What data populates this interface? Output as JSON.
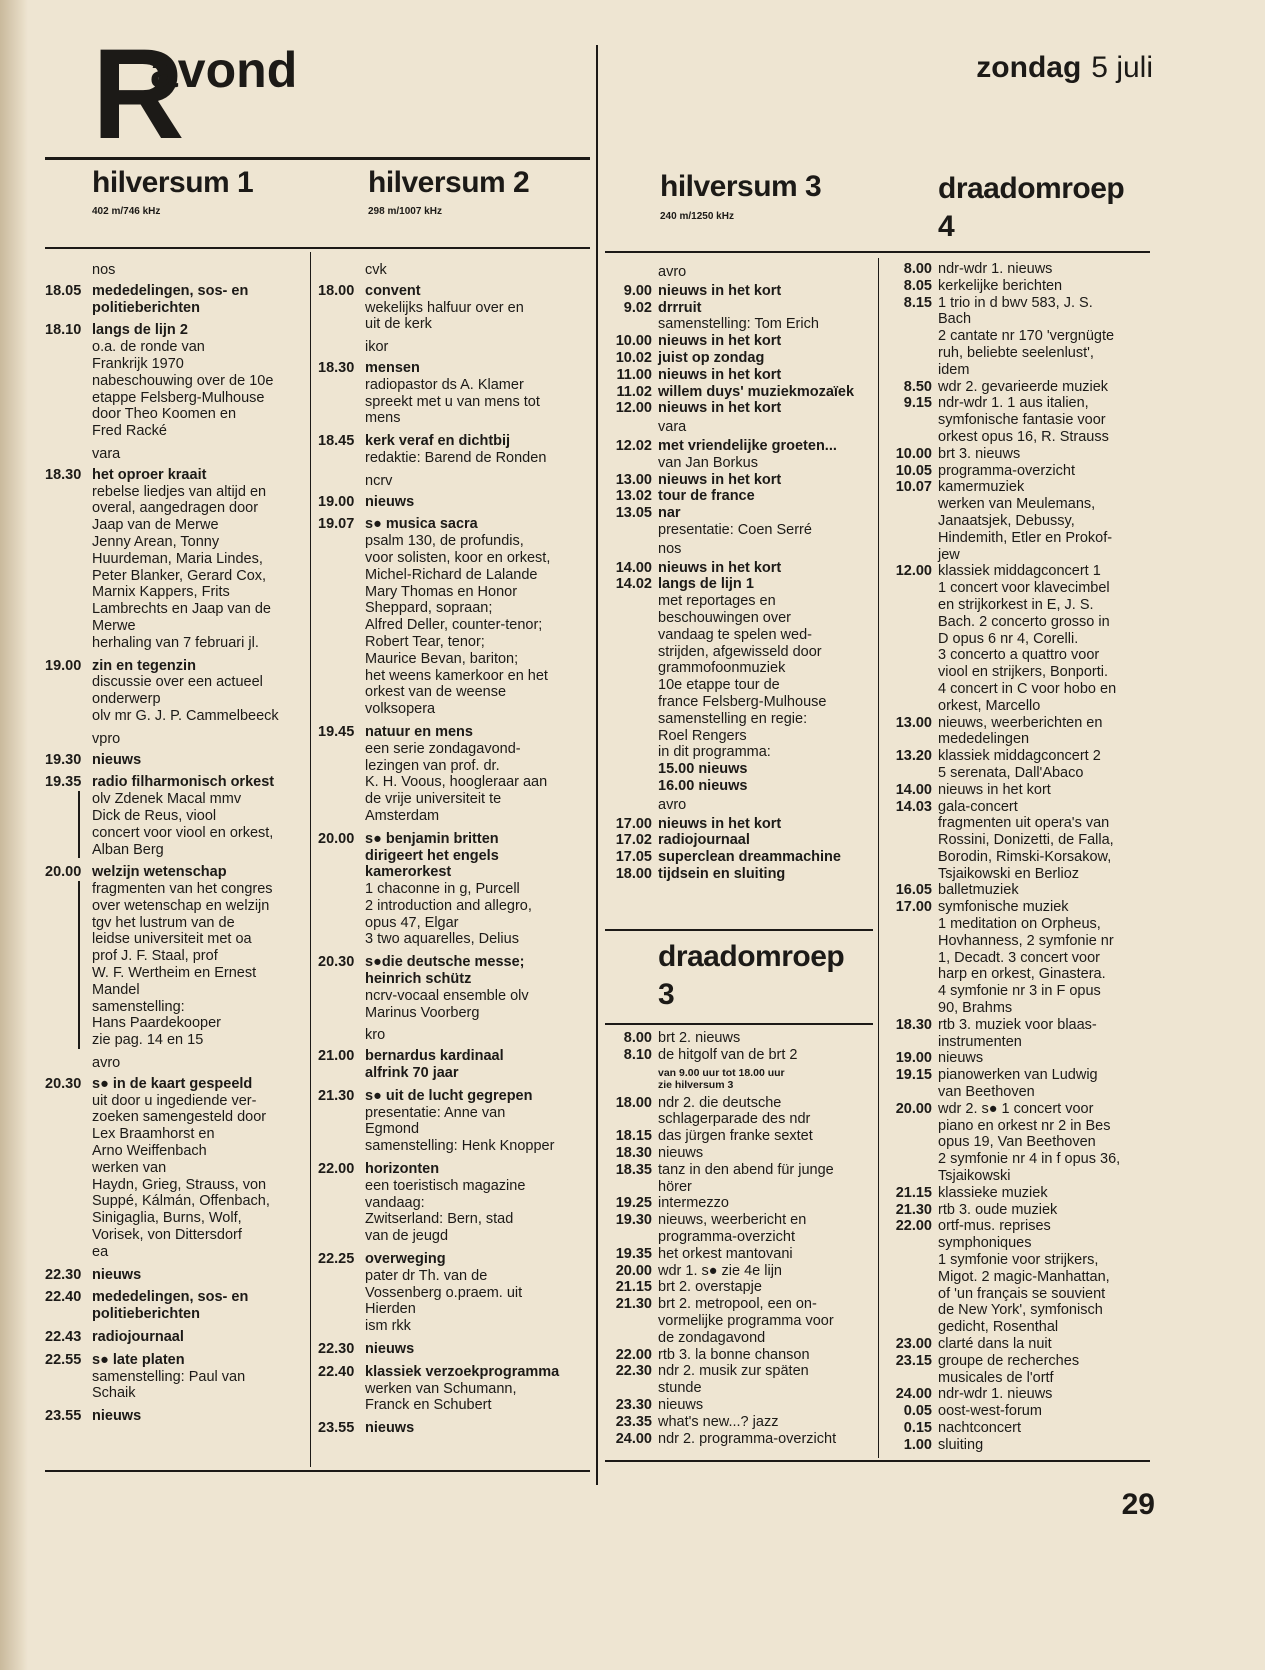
{
  "masthead": {
    "logo_letter": "R",
    "logo_word": "avond",
    "day": "zondag",
    "date": "5 juli"
  },
  "page_number": "29",
  "stations": [
    {
      "name": "hilversum 1",
      "freq": "402 m/746 kHz",
      "items": [
        {
          "org": "nos"
        },
        {
          "time": "18.05",
          "title": [
            "mededelingen, sos- en",
            "politieberichten"
          ]
        },
        {
          "time": "18.10",
          "title": [
            "langs de lijn 2"
          ],
          "desc": [
            "o.a. de ronde van",
            "Frankrijk 1970",
            "nabeschouwing over de 10e",
            "etappe Felsberg-Mulhouse",
            "door Theo Koomen en",
            "Fred Racké"
          ]
        },
        {
          "org": "vara"
        },
        {
          "time": "18.30",
          "title": [
            "het oproer kraait"
          ],
          "desc": [
            "rebelse liedjes van altijd en",
            "overal, aangedragen door",
            "Jaap van de Merwe",
            "Jenny Arean, Tonny",
            "Huurdeman, Maria Lindes,",
            "Peter Blanker, Gerard Cox,",
            "Marnix Kappers, Frits",
            "Lambrechts en Jaap van de",
            "Merwe",
            "herhaling van 7 februari jl."
          ]
        },
        {
          "time": "19.00",
          "title": [
            "zin en tegenzin"
          ],
          "desc": [
            "discussie over een actueel",
            "onderwerp",
            "olv mr G. J. P. Cammelbeeck"
          ]
        },
        {
          "org": "vpro"
        },
        {
          "time": "19.30",
          "title": [
            "nieuws"
          ]
        },
        {
          "time": "19.35",
          "title": [
            "radio filharmonisch orkest"
          ],
          "desc": [
            "olv Zdenek Macal mmv",
            "Dick de Reus, viool",
            "concert voor viool en orkest,",
            "Alban Berg"
          ],
          "bar": true
        },
        {
          "time": "20.00",
          "title": [
            "welzijn wetenschap"
          ],
          "desc": [
            "fragmenten van het congres",
            "over wetenschap en welzijn",
            "tgv het lustrum van de",
            "leidse universiteit met oa",
            "prof J. F. Staal, prof",
            "W. F. Wertheim en Ernest",
            "Mandel",
            "samenstelling:",
            "Hans Paardekooper",
            "zie pag. 14 en 15"
          ],
          "bar": true
        },
        {
          "org": "avro"
        },
        {
          "time": "20.30",
          "title": [
            "s● in de kaart gespeeld"
          ],
          "desc": [
            "uit door u ingediende ver-",
            "zoeken samengesteld door",
            "Lex Braamhorst en",
            "Arno Weiffenbach",
            "werken van",
            "Haydn, Grieg, Strauss, von",
            "Suppé, Kálmán, Offenbach,",
            "Sinigaglia, Burns, Wolf,",
            "Vorisek, von Dittersdorf",
            "ea"
          ]
        },
        {
          "time": "22.30",
          "title": [
            "nieuws"
          ]
        },
        {
          "time": "22.40",
          "title": [
            "mededelingen, sos- en",
            "politieberichten"
          ]
        },
        {
          "time": "22.43",
          "title": [
            "radiojournaal"
          ]
        },
        {
          "time": "22.55",
          "title": [
            "s● late platen"
          ],
          "desc": [
            "samenstelling: Paul van",
            "Schaik"
          ]
        },
        {
          "time": "23.55",
          "title": [
            "nieuws"
          ]
        }
      ]
    },
    {
      "name": "hilversum 2",
      "freq": "298 m/1007 kHz",
      "items": [
        {
          "org": "cvk"
        },
        {
          "time": "18.00",
          "title": [
            "convent"
          ],
          "desc": [
            "wekelijks halfuur over en",
            "uit de kerk"
          ]
        },
        {
          "org": "ikor"
        },
        {
          "time": "18.30",
          "title": [
            "mensen"
          ],
          "desc": [
            "radiopastor ds A. Klamer",
            "spreekt met u van mens tot",
            "mens"
          ]
        },
        {
          "time": "18.45",
          "title": [
            "kerk veraf en dichtbij"
          ],
          "desc": [
            "redaktie: Barend de Ronden"
          ]
        },
        {
          "org": "ncrv"
        },
        {
          "time": "19.00",
          "title": [
            "nieuws"
          ]
        },
        {
          "time": "19.07",
          "title": [
            "s● musica sacra"
          ],
          "desc": [
            "psalm 130, de profundis,",
            "voor solisten, koor en orkest,",
            "Michel-Richard de Lalande",
            "Mary Thomas en Honor",
            "Sheppard, sopraan;",
            "Alfred Deller, counter-tenor;",
            "Robert Tear, tenor;",
            "Maurice Bevan, bariton;",
            "het weens kamerkoor en het",
            "orkest van de weense",
            "volksopera"
          ]
        },
        {
          "time": "19.45",
          "title": [
            "natuur en mens"
          ],
          "desc": [
            "een serie zondagavond-",
            "lezingen van prof. dr.",
            "K. H. Voous, hoogleraar aan",
            "de vrije universiteit te",
            "Amsterdam"
          ]
        },
        {
          "time": "20.00",
          "title": [
            "s● benjamin britten",
            "dirigeert het engels",
            "kamerorkest"
          ],
          "desc": [
            "1 chaconne in g, Purcell",
            "2 introduction and allegro,",
            "opus 47, Elgar",
            "3 two aquarelles, Delius"
          ]
        },
        {
          "time": "20.30",
          "title": [
            "s●die deutsche messe;",
            "heinrich schütz"
          ],
          "desc": [
            "ncrv-vocaal ensemble olv",
            "Marinus Voorberg"
          ]
        },
        {
          "org": "kro"
        },
        {
          "time": "21.00",
          "title": [
            "bernardus kardinaal",
            "alfrink 70 jaar"
          ]
        },
        {
          "time": "21.30",
          "title": [
            "s● uit de lucht gegrepen"
          ],
          "desc": [
            "presentatie: Anne van",
            "Egmond",
            "samenstelling: Henk Knopper"
          ]
        },
        {
          "time": "22.00",
          "title": [
            "horizonten"
          ],
          "desc": [
            "een toeristisch magazine",
            "vandaag:",
            "Zwitserland: Bern, stad",
            "van de jeugd"
          ]
        },
        {
          "time": "22.25",
          "title": [
            "overweging"
          ],
          "desc": [
            "pater dr Th. van de",
            "Vossenberg o.praem. uit",
            "Hierden",
            "ism rkk"
          ]
        },
        {
          "time": "22.30",
          "title": [
            "nieuws"
          ]
        },
        {
          "time": "22.40",
          "title": [
            "klassiek verzoekprogramma"
          ],
          "desc": [
            "werken van Schumann,",
            "Franck en Schubert"
          ]
        },
        {
          "time": "23.55",
          "title": [
            "nieuws"
          ]
        }
      ]
    },
    {
      "name": "hilversum 3",
      "freq": "240 m/1250 kHz",
      "items": [
        {
          "org": "avro"
        },
        {
          "time": "9.00",
          "title": [
            "nieuws in het kort"
          ]
        },
        {
          "time": "9.02",
          "title": [
            "drrruit"
          ],
          "desc": [
            "samenstelling: Tom Erich"
          ]
        },
        {
          "time": "10.00",
          "title": [
            "nieuws in het kort"
          ]
        },
        {
          "time": "10.02",
          "title": [
            "juist op zondag"
          ]
        },
        {
          "time": "11.00",
          "title": [
            "nieuws in het kort"
          ]
        },
        {
          "time": "11.02",
          "title": [
            "willem duys' muziekmozaïek"
          ]
        },
        {
          "time": "12.00",
          "title": [
            "nieuws in het kort"
          ]
        },
        {
          "org": "vara"
        },
        {
          "time": "12.02",
          "title": [
            "met vriendelijke groeten..."
          ],
          "desc": [
            "van Jan Borkus"
          ]
        },
        {
          "time": "13.00",
          "title": [
            "nieuws in het kort"
          ]
        },
        {
          "time": "13.02",
          "title": [
            "tour de france"
          ]
        },
        {
          "time": "13.05",
          "title": [
            "nar"
          ],
          "desc": [
            "presentatie: Coen Serré"
          ]
        },
        {
          "org": "nos"
        },
        {
          "time": "14.00",
          "title": [
            "nieuws in het kort"
          ]
        },
        {
          "time": "14.02",
          "title": [
            "langs de lijn 1"
          ],
          "desc": [
            "met reportages en",
            "beschouwingen over",
            "vandaag te spelen wed-",
            "strijden, afgewisseld door",
            "grammofoonmuziek",
            "10e etappe tour de",
            "france Felsberg-Mulhouse",
            "samenstelling en regie:",
            "Roel Rengers",
            "in dit programma:"
          ],
          "sub": [
            "15.00 nieuws",
            "16.00 nieuws"
          ]
        },
        {
          "org": "avro"
        },
        {
          "time": "17.00",
          "title": [
            "nieuws in het kort"
          ]
        },
        {
          "time": "17.02",
          "title": [
            "radiojournaal"
          ]
        },
        {
          "time": "17.05",
          "title": [
            "superclean dreammachine"
          ]
        },
        {
          "time": "18.00",
          "title": [
            "tijdsein en sluiting"
          ]
        }
      ]
    },
    {
      "name": "draadomroep",
      "name2": "3",
      "items": [
        {
          "time": "8.00",
          "title": [
            "brt 2. nieuws"
          ]
        },
        {
          "time": "8.10",
          "title": [
            "de hitgolf van de brt 2"
          ]
        },
        {
          "note": [
            "van 9.00 uur tot 18.00 uur",
            "zie hilversum 3"
          ]
        },
        {
          "time": "18.00",
          "title": [
            "ndr 2. die deutsche",
            "schlagerparade des ndr"
          ]
        },
        {
          "time": "18.15",
          "title": [
            "das jürgen franke sextet"
          ]
        },
        {
          "time": "18.30",
          "title": [
            "nieuws"
          ]
        },
        {
          "time": "18.35",
          "title": [
            "tanz in den abend für junge",
            "hörer"
          ]
        },
        {
          "time": "19.25",
          "title": [
            "intermezzo"
          ]
        },
        {
          "time": "19.30",
          "title": [
            "nieuws, weerbericht en",
            "programma-overzicht"
          ]
        },
        {
          "time": "19.35",
          "title": [
            "het orkest mantovani"
          ]
        },
        {
          "time": "20.00",
          "title": [
            "wdr 1. s● zie 4e lijn"
          ]
        },
        {
          "time": "21.15",
          "title": [
            "brt 2. overstapje"
          ]
        },
        {
          "time": "21.30",
          "title": [
            "brt 2. metropool, een on-",
            "vormelijke programma voor",
            "de zondagavond"
          ]
        },
        {
          "time": "22.00",
          "title": [
            "rtb 3. la bonne chanson"
          ]
        },
        {
          "time": "22.30",
          "title": [
            "ndr 2. musik zur späten",
            "stunde"
          ]
        },
        {
          "time": "23.30",
          "title": [
            "nieuws"
          ]
        },
        {
          "time": "23.35",
          "title": [
            "what's new...? jazz"
          ]
        },
        {
          "time": "24.00",
          "title": [
            "ndr 2. programma-overzicht"
          ]
        }
      ]
    },
    {
      "name": "draadomroep",
      "name2": "4",
      "items": [
        {
          "time": "8.00",
          "title": [
            "ndr-wdr 1. nieuws"
          ]
        },
        {
          "time": "8.05",
          "title": [
            "kerkelijke berichten"
          ]
        },
        {
          "time": "8.15",
          "title": [
            "1 trio in d bwv 583, J. S.",
            "Bach",
            "2 cantate nr 170 'vergnügte",
            "ruh, beliebte seelenlust',",
            "idem"
          ]
        },
        {
          "time": "8.50",
          "title": [
            "wdr 2. gevarieerde muziek"
          ]
        },
        {
          "time": "9.15",
          "title": [
            "ndr-wdr 1. 1 aus italien,",
            "symfonische fantasie voor",
            "orkest opus 16, R. Strauss"
          ]
        },
        {
          "time": "10.00",
          "title": [
            "brt 3. nieuws"
          ]
        },
        {
          "time": "10.05",
          "title": [
            "programma-overzicht"
          ]
        },
        {
          "time": "10.07",
          "title": [
            "kamermuziek",
            "werken van Meulemans,",
            "Janaatsjek, Debussy,",
            "Hindemith, Etler en Prokof-",
            "jew"
          ]
        },
        {
          "time": "12.00",
          "title": [
            "klassiek middagconcert 1",
            "1 concert voor klavecimbel",
            "en strijkorkest in E, J. S.",
            "Bach. 2 concerto grosso in",
            "D opus 6 nr 4, Corelli.",
            "3 concerto a quattro voor",
            "viool en strijkers, Bonporti.",
            "4 concert in C voor hobo en",
            "orkest, Marcello"
          ]
        },
        {
          "time": "13.00",
          "title": [
            "nieuws, weerberichten en",
            "mededelingen"
          ]
        },
        {
          "time": "13.20",
          "title": [
            "klassiek middagconcert 2",
            "5 serenata, Dall'Abaco"
          ]
        },
        {
          "time": "14.00",
          "title": [
            "nieuws in het kort"
          ]
        },
        {
          "time": "14.03",
          "title": [
            "gala-concert",
            "fragmenten uit opera's van",
            "Rossini, Donizetti, de Falla,",
            "Borodin, Rimski-Korsakow,",
            "Tsjaikowski en Berlioz"
          ]
        },
        {
          "time": "16.05",
          "title": [
            "balletmuziek"
          ]
        },
        {
          "time": "17.00",
          "title": [
            "symfonische muziek",
            "1 meditation on Orpheus,",
            "Hovhanness, 2 symfonie nr",
            "1, Decadt. 3 concert voor",
            "harp en orkest, Ginastera.",
            "4 symfonie nr 3 in F opus",
            "90, Brahms"
          ]
        },
        {
          "time": "18.30",
          "title": [
            "rtb 3. muziek voor blaas-",
            "instrumenten"
          ]
        },
        {
          "time": "19.00",
          "title": [
            "nieuws"
          ]
        },
        {
          "time": "19.15",
          "title": [
            "pianowerken van Ludwig",
            "van Beethoven"
          ]
        },
        {
          "time": "20.00",
          "title": [
            "wdr 2. s● 1 concert voor",
            "piano en orkest nr 2 in Bes",
            "opus 19, Van Beethoven",
            "2 symfonie nr 4 in f opus 36,",
            "Tsjaikowski"
          ]
        },
        {
          "time": "21.15",
          "title": [
            "klassieke muziek"
          ]
        },
        {
          "time": "21.30",
          "title": [
            "rtb 3. oude muziek"
          ]
        },
        {
          "time": "22.00",
          "title": [
            "ortf-mus. reprises",
            "symphoniques",
            "1 symfonie voor strijkers,",
            "Migot. 2 magic-Manhattan,",
            "of 'un français se souvient",
            "de New York', symfonisch",
            "gedicht, Rosenthal"
          ]
        },
        {
          "time": "23.00",
          "title": [
            "clarté dans la nuit"
          ]
        },
        {
          "time": "23.15",
          "title": [
            "groupe de recherches",
            "musicales de l'ortf"
          ]
        },
        {
          "time": "24.00",
          "title": [
            "ndr-wdr 1. nieuws"
          ]
        },
        {
          "time": "0.05",
          "title": [
            "oost-west-forum"
          ]
        },
        {
          "time": "0.15",
          "title": [
            "nachtconcert"
          ]
        },
        {
          "time": "1.00",
          "title": [
            "sluiting"
          ]
        }
      ]
    }
  ]
}
